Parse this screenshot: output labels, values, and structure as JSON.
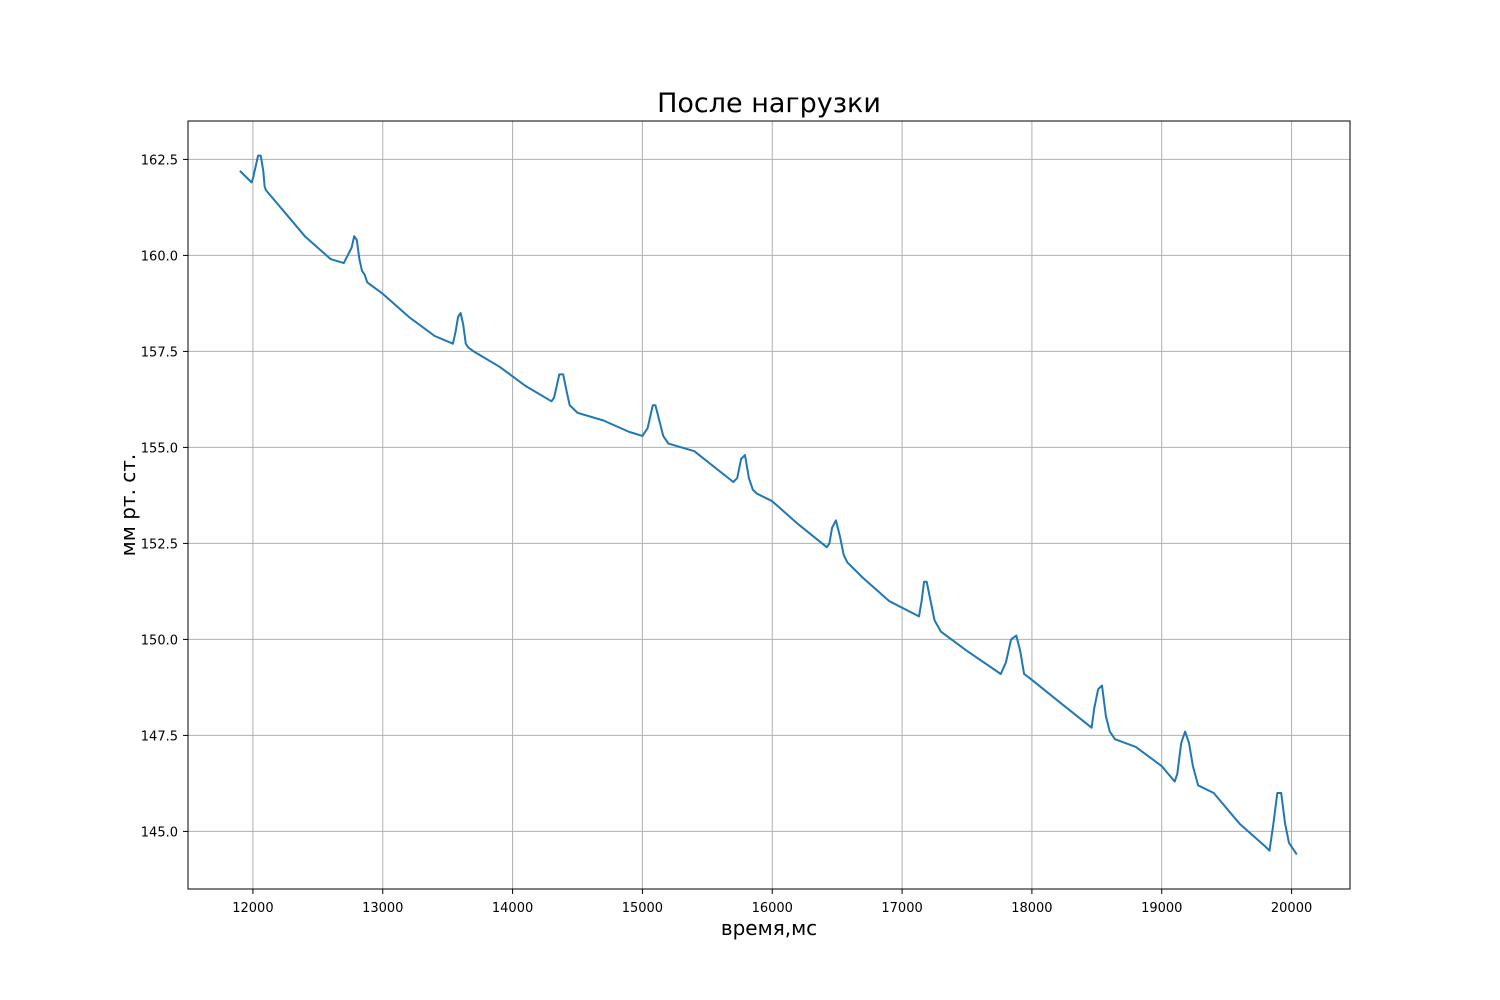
{
  "chart_data": {
    "type": "line",
    "title": "После нагрузки",
    "xlabel": "время,мс",
    "ylabel": "мм рт. ст.",
    "xlim": [
      11500,
      20450
    ],
    "ylim": [
      143.5,
      163.5
    ],
    "x_ticks": [
      12000,
      13000,
      14000,
      15000,
      16000,
      17000,
      18000,
      19000,
      20000
    ],
    "y_ticks": [
      145.0,
      147.5,
      150.0,
      152.5,
      155.0,
      157.5,
      160.0,
      162.5
    ],
    "x_tick_labels": [
      "12000",
      "13000",
      "14000",
      "15000",
      "16000",
      "17000",
      "18000",
      "19000",
      "20000"
    ],
    "y_tick_labels": [
      "145.0",
      "147.5",
      "150.0",
      "152.5",
      "155.0",
      "157.5",
      "160.0",
      "162.5"
    ],
    "grid": true,
    "series_color": "#1f77b4",
    "series": [
      {
        "x": [
          11900,
          11990,
          12000,
          12040,
          12060,
          12080,
          12090,
          12100,
          12200,
          12300,
          12400,
          12500,
          12600,
          12700,
          12760,
          12780,
          12800,
          12820,
          12840,
          12860,
          12880,
          13000,
          13200,
          13400,
          13540,
          13560,
          13580,
          13600,
          13620,
          13640,
          13660,
          13700,
          13900,
          14100,
          14300,
          14320,
          14360,
          14390,
          14420,
          14440,
          14470,
          14500,
          14700,
          14900,
          15000,
          15040,
          15080,
          15100,
          15130,
          15160,
          15200,
          15400,
          15700,
          15730,
          15760,
          15790,
          15820,
          15850,
          15880,
          16000,
          16200,
          16420,
          16440,
          16460,
          16490,
          16520,
          16550,
          16580,
          16700,
          16900,
          17130,
          17150,
          17170,
          17190,
          17220,
          17250,
          17300,
          17500,
          17760,
          17800,
          17840,
          17880,
          17910,
          17940,
          17980,
          18200,
          18460,
          18480,
          18510,
          18540,
          18570,
          18600,
          18640,
          18800,
          19000,
          19100,
          19120,
          19150,
          19180,
          19210,
          19240,
          19280,
          19400,
          19600,
          19800,
          19830,
          19860,
          19890,
          19920,
          19950,
          19980,
          20040
        ],
        "y": [
          162.2,
          161.9,
          162.0,
          162.6,
          162.6,
          162.2,
          161.8,
          161.7,
          161.3,
          160.9,
          160.5,
          160.2,
          159.9,
          159.8,
          160.2,
          160.5,
          160.4,
          159.9,
          159.6,
          159.5,
          159.3,
          159.0,
          158.4,
          157.9,
          157.7,
          158.0,
          158.4,
          158.5,
          158.2,
          157.7,
          157.6,
          157.5,
          157.1,
          156.6,
          156.2,
          156.3,
          156.9,
          156.9,
          156.4,
          156.1,
          156.0,
          155.9,
          155.7,
          155.4,
          155.3,
          155.5,
          156.1,
          156.1,
          155.7,
          155.3,
          155.1,
          154.9,
          154.1,
          154.2,
          154.7,
          154.8,
          154.2,
          153.9,
          153.8,
          153.6,
          153.0,
          152.4,
          152.5,
          152.9,
          153.1,
          152.7,
          152.2,
          152.0,
          151.6,
          151.0,
          150.6,
          151.0,
          151.5,
          151.5,
          151.0,
          150.5,
          150.2,
          149.7,
          149.1,
          149.4,
          150.0,
          150.1,
          149.7,
          149.1,
          149.0,
          148.4,
          147.7,
          148.2,
          148.7,
          148.8,
          148.0,
          147.6,
          147.4,
          147.2,
          146.7,
          146.3,
          146.5,
          147.3,
          147.6,
          147.3,
          146.7,
          146.2,
          146.0,
          145.2,
          144.6,
          144.5,
          145.2,
          146.0,
          146.0,
          145.2,
          144.7,
          144.4
        ]
      }
    ]
  }
}
